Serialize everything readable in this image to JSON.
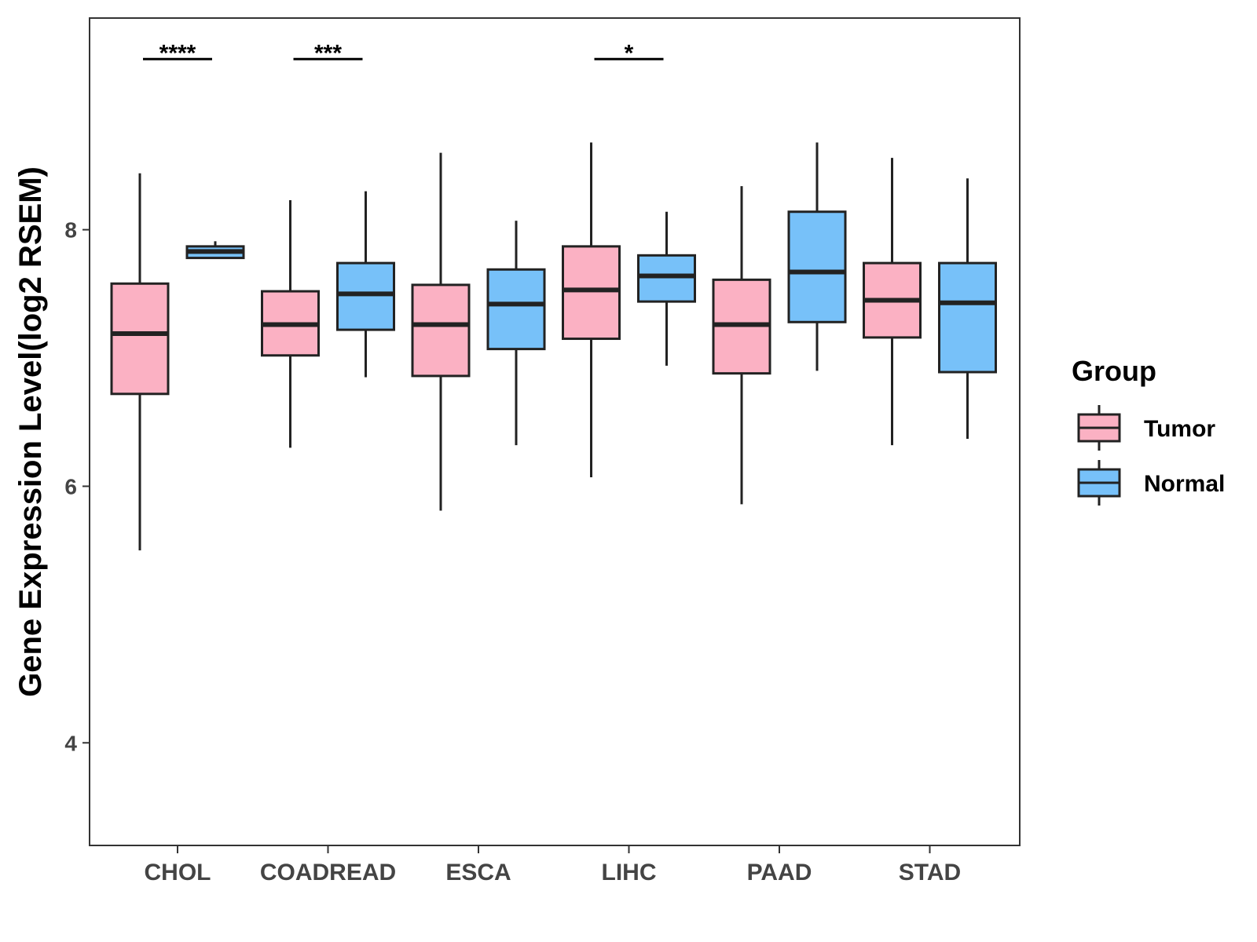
{
  "chart_data": {
    "type": "boxplot",
    "title": "",
    "xlabel": "",
    "ylabel": "Gene Expression Level(log2 RSEM)",
    "ylim": [
      3.2,
      9.65
    ],
    "y_ticks": [
      4,
      6,
      8
    ],
    "grid": false,
    "categories": [
      "CHOL",
      "COADREAD",
      "ESCA",
      "LIHC",
      "PAAD",
      "STAD"
    ],
    "legend": {
      "title": "Group",
      "position": "right",
      "entries": [
        {
          "name": "Tumor",
          "color": "#FBB1C3"
        },
        {
          "name": "Normal",
          "color": "#77C1F9"
        }
      ]
    },
    "series": [
      {
        "name": "Tumor",
        "color": "#FBB1C3",
        "boxes": [
          {
            "category": "CHOL",
            "min": 5.5,
            "q1": 6.72,
            "median": 7.19,
            "q3": 7.58,
            "max": 8.44
          },
          {
            "category": "COADREAD",
            "min": 6.3,
            "q1": 7.02,
            "median": 7.26,
            "q3": 7.52,
            "max": 8.23
          },
          {
            "category": "ESCA",
            "min": 5.81,
            "q1": 6.86,
            "median": 7.26,
            "q3": 7.57,
            "max": 8.6
          },
          {
            "category": "LIHC",
            "min": 6.07,
            "q1": 7.15,
            "median": 7.53,
            "q3": 7.87,
            "max": 8.68
          },
          {
            "category": "PAAD",
            "min": 5.86,
            "q1": 6.88,
            "median": 7.26,
            "q3": 7.61,
            "max": 8.34
          },
          {
            "category": "STAD",
            "min": 6.32,
            "q1": 7.16,
            "median": 7.45,
            "q3": 7.74,
            "max": 8.56
          }
        ]
      },
      {
        "name": "Normal",
        "color": "#77C1F9",
        "boxes": [
          {
            "category": "CHOL",
            "min": 7.78,
            "q1": 7.78,
            "median": 7.83,
            "q3": 7.87,
            "max": 7.91
          },
          {
            "category": "COADREAD",
            "min": 6.85,
            "q1": 7.22,
            "median": 7.5,
            "q3": 7.74,
            "max": 8.3
          },
          {
            "category": "ESCA",
            "min": 6.32,
            "q1": 7.07,
            "median": 7.42,
            "q3": 7.69,
            "max": 8.07
          },
          {
            "category": "LIHC",
            "min": 6.94,
            "q1": 7.44,
            "median": 7.64,
            "q3": 7.8,
            "max": 8.14
          },
          {
            "category": "PAAD",
            "min": 6.9,
            "q1": 7.28,
            "median": 7.67,
            "q3": 8.14,
            "max": 8.68
          },
          {
            "category": "STAD",
            "min": 6.37,
            "q1": 6.89,
            "median": 7.43,
            "q3": 7.74,
            "max": 8.4
          }
        ]
      }
    ],
    "significance": [
      {
        "category": "CHOL",
        "label": "****",
        "y": 9.33
      },
      {
        "category": "COADREAD",
        "label": "***",
        "y": 9.33
      },
      {
        "category": "LIHC",
        "label": "*",
        "y": 9.33
      }
    ]
  }
}
